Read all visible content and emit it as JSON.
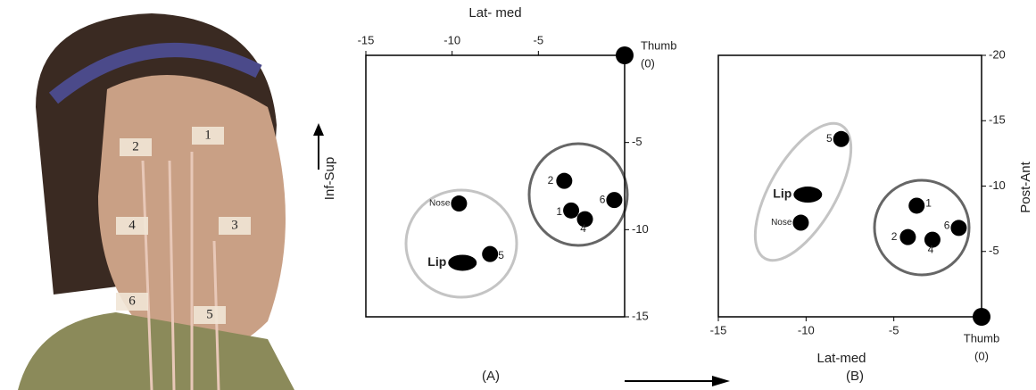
{
  "photo": {
    "electrode_labels": [
      "1",
      "2",
      "3",
      "4",
      "5",
      "6"
    ]
  },
  "chart_data": [
    {
      "type": "scatter",
      "caption": "(A)",
      "x_label": "Lat- med",
      "y_label": "Inf-Sup",
      "labels": [
        "Nose",
        "Lip",
        "5",
        "2",
        "1",
        "4",
        "6"
      ],
      "markers": [
        "circle",
        "ellipse",
        "circle",
        "circle",
        "circle",
        "circle",
        "circle"
      ],
      "x": [
        -9.6,
        -9.4,
        -7.8,
        -3.5,
        -3.1,
        -2.3,
        -0.6
      ],
      "values": [
        -8.5,
        -11.9,
        -11.4,
        -7.2,
        -8.9,
        -9.4,
        -8.3
      ],
      "reference": {
        "label": "Thumb",
        "note": "(0)",
        "x": 0,
        "y": 0
      },
      "xlim": [
        -15,
        0
      ],
      "xticks": [
        -15,
        -10,
        -5
      ],
      "ylim": [
        -15,
        0
      ],
      "yticks": [
        -5,
        -10,
        -15
      ],
      "color": "#000000"
    },
    {
      "type": "scatter",
      "caption": "(B)",
      "x_label": "Lat-med",
      "y_label": "Post-Ant",
      "labels": [
        "5",
        "Lip",
        "Nose",
        "1",
        "2",
        "4",
        "6"
      ],
      "markers": [
        "circle",
        "ellipse",
        "circle",
        "circle",
        "circle",
        "circle",
        "circle"
      ],
      "x": [
        -8.0,
        -9.9,
        -10.3,
        -3.7,
        -4.2,
        -2.8,
        -1.3
      ],
      "values": [
        -13.6,
        -9.35,
        -7.2,
        -8.5,
        -6.1,
        -5.9,
        -6.8
      ],
      "reference": {
        "label": "Thumb",
        "note": "(0)",
        "x": 0,
        "y": 0
      },
      "xlim": [
        -15,
        0
      ],
      "xticks": [
        -15,
        -10,
        -5
      ],
      "ylim": [
        0,
        -20
      ],
      "yticks": [
        -20,
        -15,
        -10,
        -5
      ],
      "color": "#000000"
    }
  ]
}
